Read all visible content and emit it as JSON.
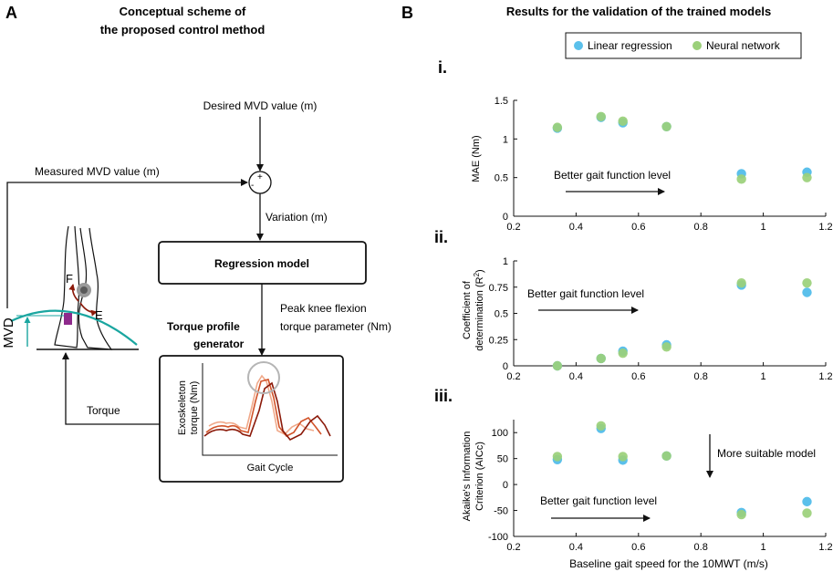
{
  "colors": {
    "linear": "#5bc0eb",
    "neural": "#9bd07a",
    "teal": "#1aa6a0",
    "torque_dark": "#8b1a0a",
    "torque_mid": "#d2542a",
    "torque_light": "#f0a98a"
  },
  "panelA": {
    "letter": "A",
    "title_line1": "Conceptual scheme of",
    "title_line2": "the proposed control method",
    "desired_label": "Desired MVD value (m)",
    "measured_label": "Measured MVD value (m)",
    "plus_sign": "+",
    "minus_sign": "-",
    "variation_label": "Variation (m)",
    "regression_label": "Regression model",
    "peak_line1": "Peak knee flexion",
    "peak_line2": "torque parameter (Nm)",
    "generator_line1": "Torque profile",
    "generator_line2": "generator",
    "exo_line1": "Exoskeleton",
    "exo_line2": "torque (Nm)",
    "gait_cycle_label": "Gait Cycle",
    "torque_label": "Torque",
    "mvd_label": "MVD",
    "flex_label": "F",
    "ext_label": "E"
  },
  "panelB": {
    "letter": "B",
    "title": "Results for the validation of the trained models",
    "legend_linear": "Linear regression",
    "legend_neural": "Neural network",
    "xlabel": "Baseline gait speed for the 10MWT (m/s)",
    "better_label": "Better gait function level",
    "suitable_label": "More suitable model"
  },
  "chart_data": [
    {
      "type": "scatter",
      "panel": "i.",
      "ylabel": "MAE (Nm)",
      "xlim": [
        0.2,
        1.2
      ],
      "ylim": [
        0,
        1.5
      ],
      "x_ticks": [
        "0.2",
        "0.4",
        "0.6",
        "0.8",
        "1",
        "1.2"
      ],
      "y_ticks": [
        "0",
        "0.5",
        "1",
        "1.5"
      ],
      "x": [
        0.34,
        0.48,
        0.55,
        0.69,
        0.93,
        1.14
      ],
      "series": [
        {
          "name": "Linear regression",
          "values": [
            1.14,
            1.28,
            1.21,
            1.16,
            0.55,
            0.57
          ]
        },
        {
          "name": "Neural network",
          "values": [
            1.15,
            1.29,
            1.23,
            1.16,
            0.48,
            0.5
          ]
        }
      ]
    },
    {
      "type": "scatter",
      "panel": "ii.",
      "ylabel_line1": "Coefficient of",
      "ylabel_line2": "determination (R",
      "ylabel_sup": "2",
      "ylabel_end": ")",
      "xlim": [
        0.2,
        1.2
      ],
      "ylim": [
        0,
        1
      ],
      "x_ticks": [
        "0.2",
        "0.4",
        "0.6",
        "0.8",
        "1",
        "1.2"
      ],
      "y_ticks": [
        "0",
        "0.25",
        "0.5",
        "0.75",
        "1"
      ],
      "x": [
        0.34,
        0.48,
        0.55,
        0.69,
        0.93,
        1.14
      ],
      "series": [
        {
          "name": "Linear regression",
          "values": [
            0.0,
            0.07,
            0.14,
            0.2,
            0.77,
            0.7
          ]
        },
        {
          "name": "Neural network",
          "values": [
            0.0,
            0.07,
            0.12,
            0.18,
            0.79,
            0.79
          ]
        }
      ]
    },
    {
      "type": "scatter",
      "panel": "iii.",
      "ylabel_line1": "Akaike's Information",
      "ylabel_line2": "Criterion (AICc)",
      "xlim": [
        0.2,
        1.2
      ],
      "ylim": [
        -100,
        125
      ],
      "x_ticks": [
        "0.2",
        "0.4",
        "0.6",
        "0.8",
        "1",
        "1.2"
      ],
      "y_ticks": [
        "-100",
        "-50",
        "0",
        "50",
        "100"
      ],
      "x": [
        0.34,
        0.48,
        0.55,
        0.69,
        0.93,
        1.14
      ],
      "series": [
        {
          "name": "Linear regression",
          "values": [
            48,
            108,
            47,
            55,
            -54,
            -33
          ]
        },
        {
          "name": "Neural network",
          "values": [
            54,
            113,
            54,
            55,
            -58,
            -55
          ]
        }
      ]
    }
  ]
}
